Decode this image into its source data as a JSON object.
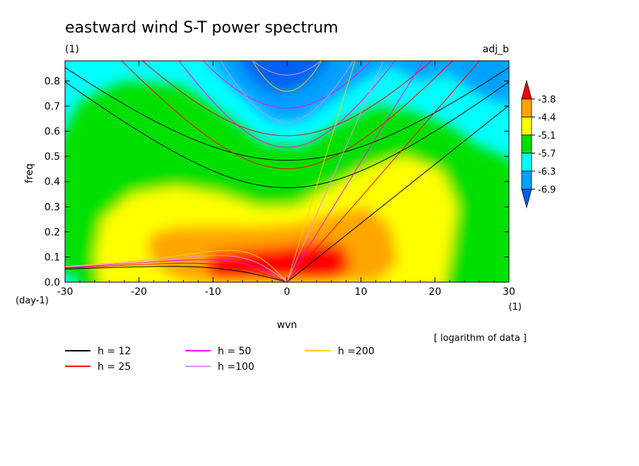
{
  "chart_data": {
    "type": "heatmap",
    "title": "eastward wind S-T power spectrum",
    "subtitle": "(1)",
    "top_right_label": "adj_b",
    "xlabel": "wvn",
    "x_unit": "(1)",
    "ylabel": "freq",
    "y_unit": "(day-1)",
    "xlim": [
      -30,
      30
    ],
    "ylim": [
      0,
      0.88
    ],
    "x_ticks": [
      -30,
      -20,
      -10,
      0,
      10,
      20,
      30
    ],
    "x_tick_labels": [
      "-30",
      "-20",
      "-10",
      "0",
      "10",
      "20",
      "30"
    ],
    "y_ticks": [
      0.0,
      0.1,
      0.2,
      0.3,
      0.4,
      0.5,
      0.6,
      0.7,
      0.8
    ],
    "y_tick_labels": [
      "0.0",
      "0.1",
      "0.2",
      "0.3",
      "0.4",
      "0.5",
      "0.6",
      "0.7",
      "0.8"
    ],
    "colorbar": {
      "levels": [
        "-3.8",
        "-4.4",
        "-5.1",
        "-5.7",
        "-6.3",
        "-6.9"
      ],
      "colors": [
        "#ff0000",
        "#ffa500",
        "#ffff00",
        "#00e000",
        "#00ffff",
        "#00a0ff",
        "#0060f0"
      ],
      "note": "[ logarithm of data ]"
    },
    "series": [
      {
        "name": "h = 12",
        "h": 12,
        "color": "#000000"
      },
      {
        "name": "h = 25",
        "h": 25,
        "color": "#ff0000"
      },
      {
        "name": "h = 50",
        "h": 50,
        "color": "#ff00ff"
      },
      {
        "name": "h =100",
        "h": 100,
        "color": "#e090ff"
      },
      {
        "name": "h =200",
        "h": 200,
        "color": "#ffd000"
      }
    ]
  }
}
